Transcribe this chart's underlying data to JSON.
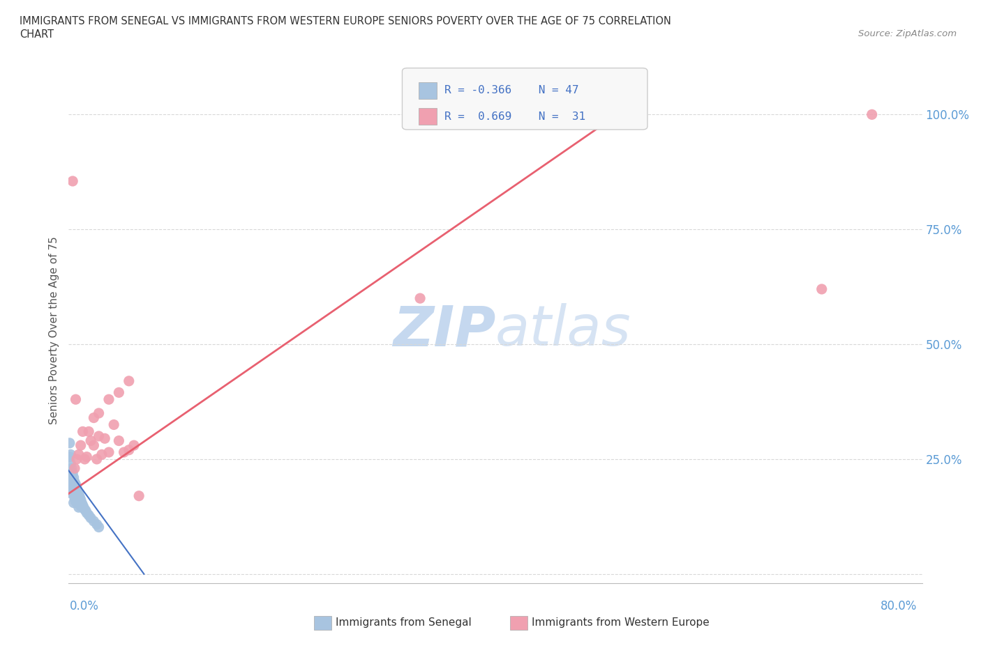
{
  "title_line1": "IMMIGRANTS FROM SENEGAL VS IMMIGRANTS FROM WESTERN EUROPE SENIORS POVERTY OVER THE AGE OF 75 CORRELATION",
  "title_line2": "CHART",
  "source_text": "Source: ZipAtlas.com",
  "ylabel": "Seniors Poverty Over the Age of 75",
  "r_senegal": -0.366,
  "n_senegal": 47,
  "r_western": 0.669,
  "n_western": 31,
  "background_color": "#ffffff",
  "plot_bg_color": "#ffffff",
  "grid_color": "#d8d8d8",
  "senegal_color": "#a8c4e0",
  "western_color": "#f0a0b0",
  "senegal_line_color": "#4472c4",
  "western_line_color": "#e86070",
  "watermark_color": "#d0dff0",
  "xlim": [
    0.0,
    0.85
  ],
  "ylim": [
    -0.02,
    1.08
  ],
  "senegal_x": [
    0.001,
    0.001,
    0.001,
    0.002,
    0.002,
    0.002,
    0.002,
    0.003,
    0.003,
    0.003,
    0.003,
    0.004,
    0.004,
    0.004,
    0.005,
    0.005,
    0.005,
    0.005,
    0.006,
    0.006,
    0.006,
    0.007,
    0.007,
    0.007,
    0.008,
    0.008,
    0.008,
    0.009,
    0.009,
    0.01,
    0.01,
    0.01,
    0.011,
    0.011,
    0.012,
    0.012,
    0.013,
    0.014,
    0.015,
    0.016,
    0.017,
    0.018,
    0.02,
    0.022,
    0.025,
    0.028,
    0.03
  ],
  "senegal_y": [
    0.285,
    0.255,
    0.22,
    0.26,
    0.24,
    0.215,
    0.195,
    0.23,
    0.21,
    0.195,
    0.175,
    0.22,
    0.2,
    0.18,
    0.21,
    0.195,
    0.175,
    0.155,
    0.2,
    0.185,
    0.165,
    0.195,
    0.175,
    0.158,
    0.188,
    0.17,
    0.155,
    0.178,
    0.162,
    0.175,
    0.16,
    0.145,
    0.168,
    0.153,
    0.162,
    0.148,
    0.155,
    0.15,
    0.145,
    0.14,
    0.138,
    0.133,
    0.128,
    0.122,
    0.115,
    0.108,
    0.102
  ],
  "western_x": [
    0.004,
    0.006,
    0.007,
    0.008,
    0.01,
    0.012,
    0.014,
    0.016,
    0.018,
    0.02,
    0.022,
    0.025,
    0.028,
    0.03,
    0.033,
    0.036,
    0.04,
    0.045,
    0.05,
    0.055,
    0.06,
    0.065,
    0.07,
    0.025,
    0.03,
    0.04,
    0.05,
    0.06,
    0.75,
    0.8,
    0.35
  ],
  "western_y": [
    0.855,
    0.23,
    0.38,
    0.25,
    0.26,
    0.28,
    0.31,
    0.25,
    0.255,
    0.31,
    0.29,
    0.28,
    0.25,
    0.3,
    0.26,
    0.295,
    0.265,
    0.325,
    0.29,
    0.265,
    0.27,
    0.28,
    0.17,
    0.34,
    0.35,
    0.38,
    0.395,
    0.42,
    0.62,
    1.0,
    0.6
  ],
  "west_line_x": [
    0.0,
    0.55
  ],
  "west_line_y": [
    0.175,
    1.005
  ],
  "sen_line_x": [
    0.0,
    0.075
  ],
  "sen_line_y": [
    0.225,
    0.0
  ]
}
